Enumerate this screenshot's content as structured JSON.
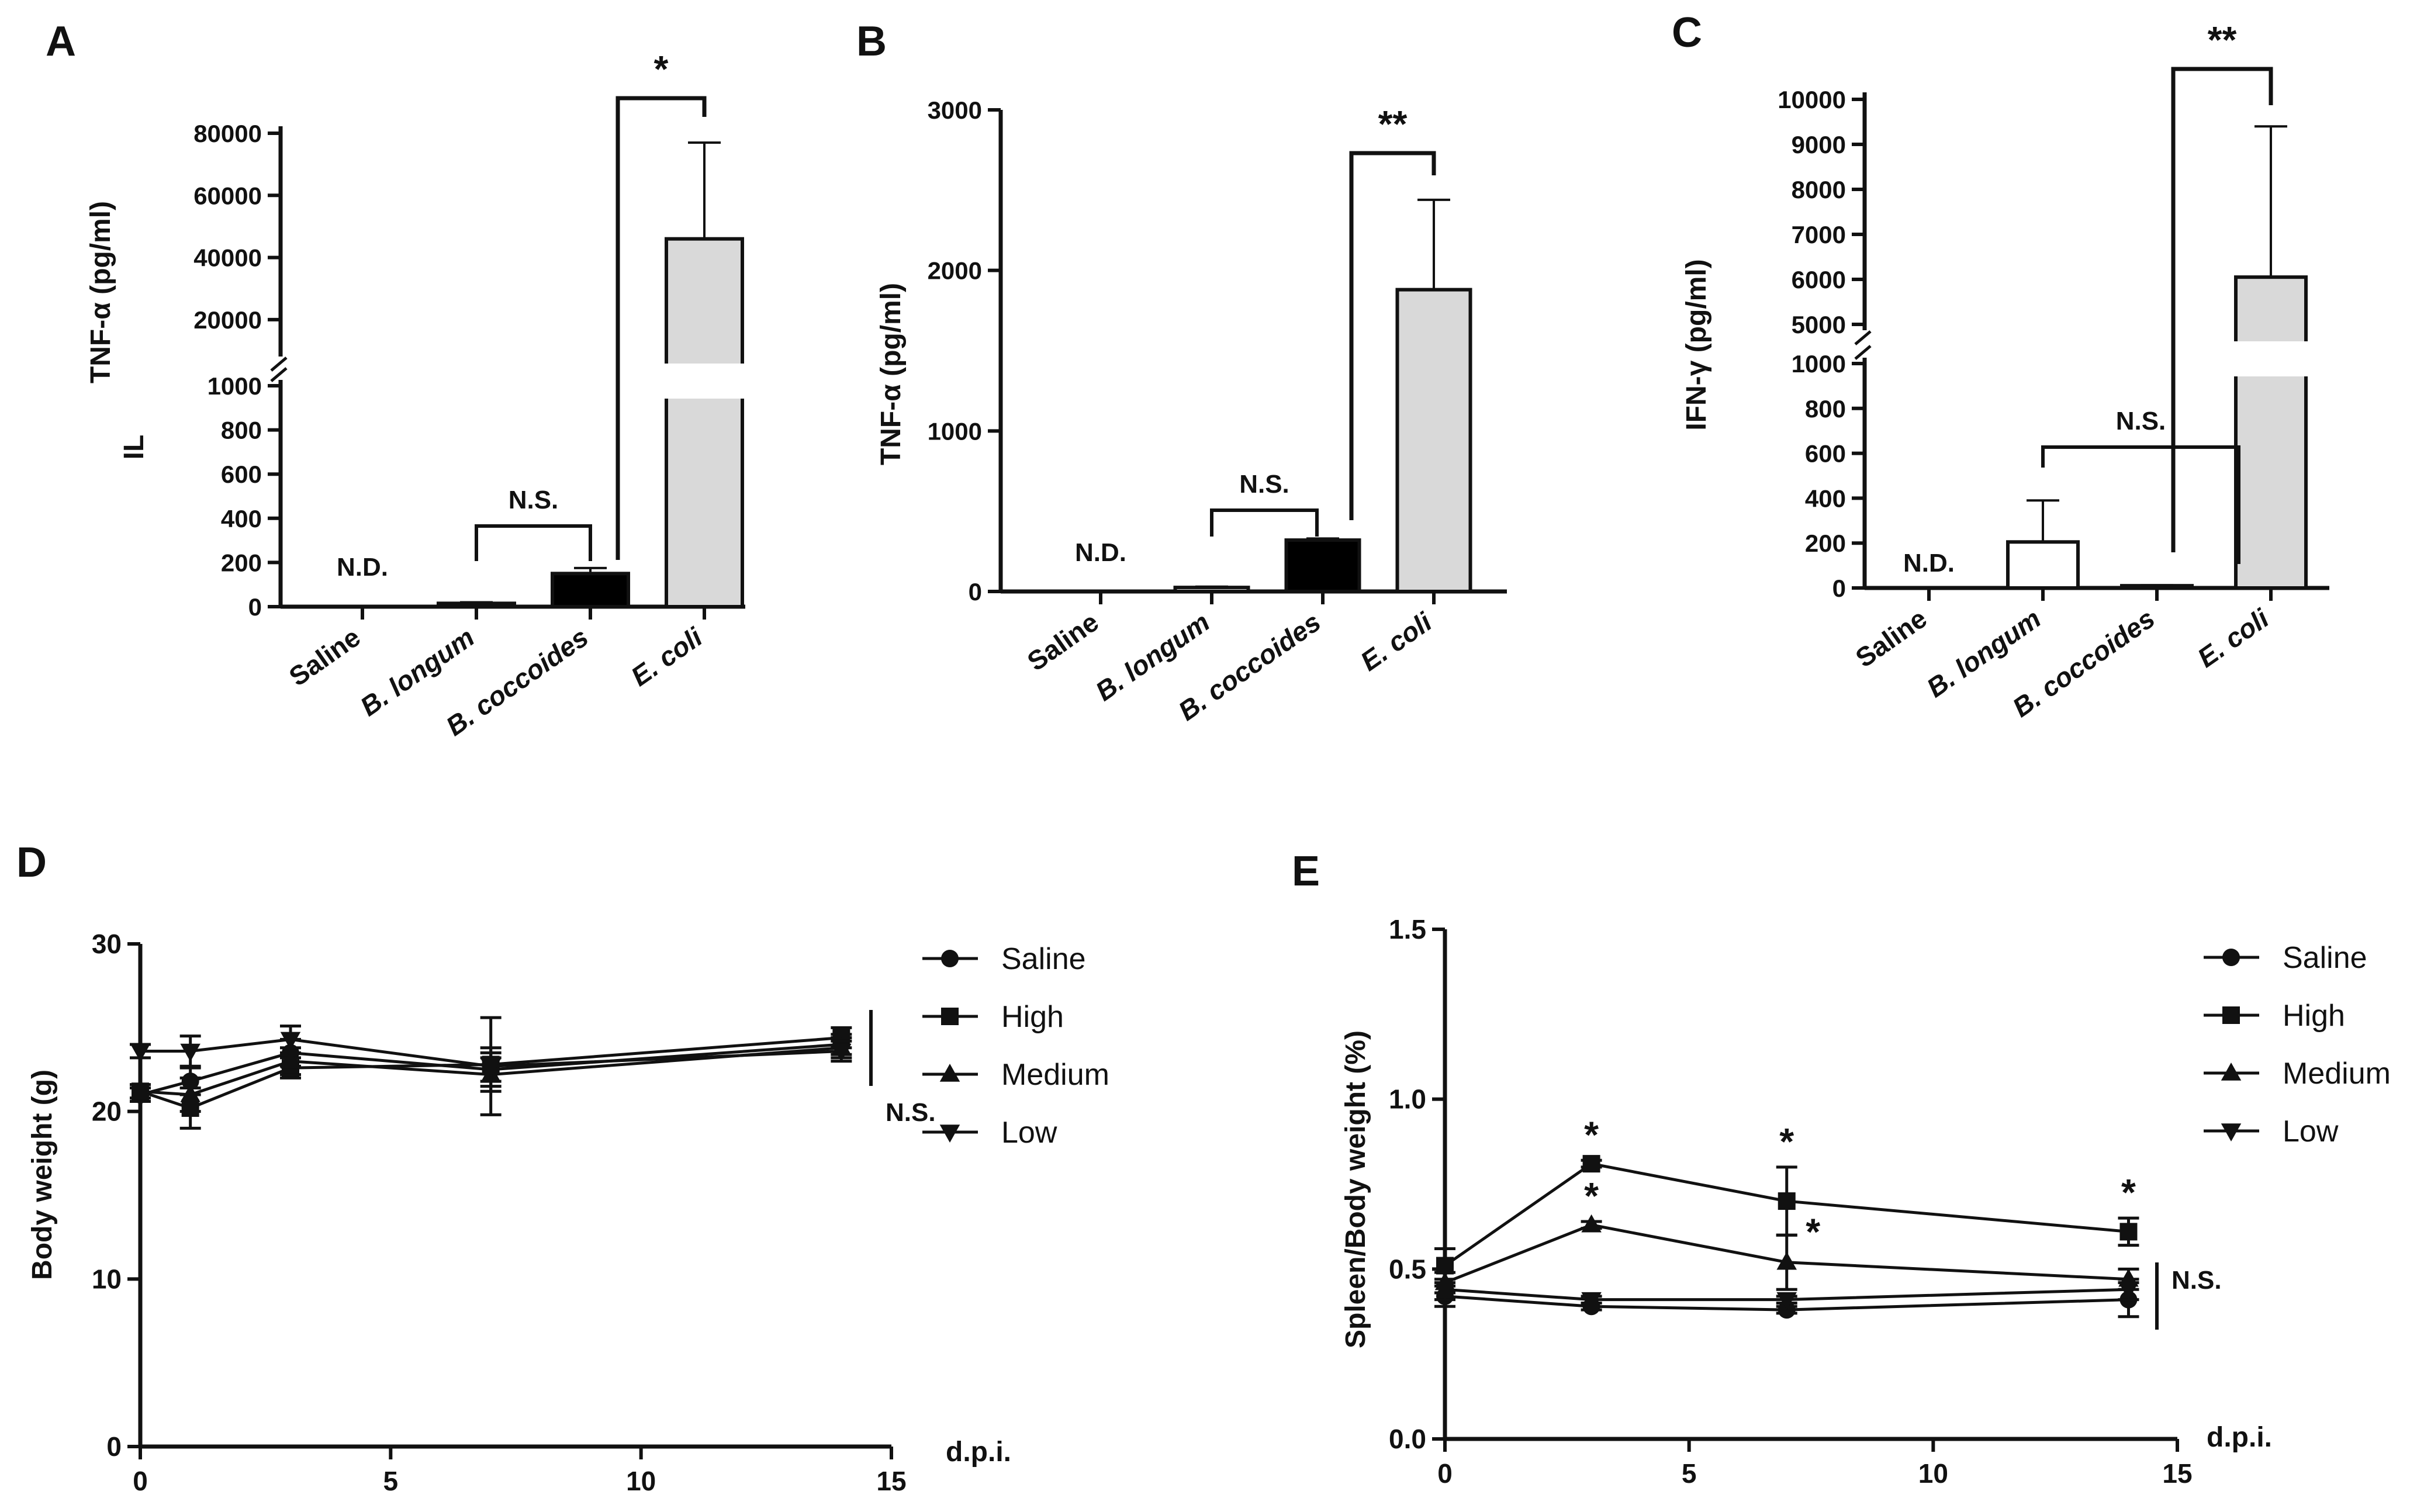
{
  "chart_data": [
    {
      "panel": "A",
      "type": "bar",
      "ylabel_upper": "TNF-α (pg/ml)",
      "ylabel_lower": "IL",
      "categories": [
        "Saline",
        "B. longum",
        "B. coccoides",
        "E. coli"
      ],
      "values": [
        0,
        15,
        150,
        46000
      ],
      "errors": [
        0,
        5,
        25,
        31000
      ],
      "colors": [
        "#ffffff",
        "#ffffff",
        "#000000",
        "#d9d9d9"
      ],
      "ylim_lower": [
        0,
        1000
      ],
      "ylim_upper": [
        10000,
        80000
      ],
      "yticks_lower": [
        "0",
        "200",
        "400",
        "600",
        "800",
        "1000"
      ],
      "yticks_upper": [
        "20000",
        "40000",
        "60000",
        "80000"
      ],
      "annotations": {
        "nd": "N.D.",
        "ns": "N.S.",
        "sig": "*"
      }
    },
    {
      "panel": "B",
      "type": "bar",
      "ylabel": "TNF-α (pg/ml)",
      "categories": [
        "Saline",
        "B. longum",
        "B. coccoides",
        "E. coli"
      ],
      "values": [
        0,
        25,
        320,
        1880
      ],
      "errors": [
        0,
        5,
        10,
        560
      ],
      "colors": [
        "#ffffff",
        "#ffffff",
        "#000000",
        "#d9d9d9"
      ],
      "ylim": [
        0,
        3000
      ],
      "yticks": [
        "0",
        "1000",
        "2000",
        "3000"
      ],
      "annotations": {
        "nd": "N.D.",
        "ns": "N.S.",
        "sig": "**"
      }
    },
    {
      "panel": "C",
      "type": "bar",
      "ylabel": "IFN-γ (pg/ml)",
      "categories": [
        "Saline",
        "B. longum",
        "B. coccoides",
        "E. coli"
      ],
      "values": [
        0,
        205,
        10,
        6050
      ],
      "errors": [
        0,
        185,
        2,
        3350
      ],
      "colors": [
        "#ffffff",
        "#ffffff",
        "#000000",
        "#d9d9d9"
      ],
      "ylim_lower": [
        0,
        1000
      ],
      "ylim_upper": [
        5000,
        10000
      ],
      "yticks_lower": [
        "0",
        "200",
        "400",
        "600",
        "800",
        "1000"
      ],
      "yticks_upper": [
        "5000",
        "6000",
        "7000",
        "8000",
        "9000",
        "10000"
      ],
      "annotations": {
        "nd": "N.D.",
        "ns": "N.S.",
        "sig": "**"
      }
    },
    {
      "panel": "D",
      "type": "line",
      "ylabel": "Body weight (g)",
      "xlabel": "d.p.i.",
      "xlim": [
        0,
        15
      ],
      "ylim": [
        0,
        30
      ],
      "xticks": [
        "0",
        "5",
        "10",
        "15"
      ],
      "yticks": [
        "0",
        "10",
        "20",
        "30"
      ],
      "x": [
        0,
        1,
        3,
        7,
        14
      ],
      "series": [
        {
          "name": "Saline",
          "marker": "circle",
          "values": [
            21.0,
            21.8,
            23.5,
            22.5,
            24.0
          ],
          "errors": [
            0.4,
            0.8,
            0.8,
            1.0,
            0.6
          ]
        },
        {
          "name": "High",
          "marker": "square",
          "values": [
            21.2,
            20.2,
            22.6,
            22.8,
            24.4
          ],
          "errors": [
            0.4,
            1.2,
            0.6,
            1.0,
            0.6
          ]
        },
        {
          "name": "Medium",
          "marker": "triangle-up",
          "values": [
            21.2,
            21.0,
            23.0,
            22.2,
            23.8
          ],
          "errors": [
            0.4,
            1.0,
            0.8,
            1.0,
            0.6
          ]
        },
        {
          "name": "Low",
          "marker": "triangle-down",
          "values": [
            23.6,
            23.6,
            24.3,
            22.7,
            23.6
          ],
          "errors": [
            0.4,
            0.9,
            0.8,
            2.9,
            0.6
          ]
        }
      ],
      "annotations": {
        "ns": "N.S."
      }
    },
    {
      "panel": "E",
      "type": "line",
      "ylabel": "Spleen/Body weight (%)",
      "xlabel": "d.p.i.",
      "xlim": [
        0,
        15
      ],
      "ylim": [
        0,
        1.5
      ],
      "xticks": [
        "0",
        "5",
        "10",
        "15"
      ],
      "yticks": [
        "0.0",
        "0.5",
        "1.0",
        "1.5"
      ],
      "x": [
        0,
        3,
        7,
        14
      ],
      "series": [
        {
          "name": "Saline",
          "marker": "circle",
          "values": [
            0.42,
            0.39,
            0.38,
            0.41
          ],
          "errors": [
            0.03,
            0.01,
            0.01,
            0.05
          ]
        },
        {
          "name": "High",
          "marker": "square",
          "values": [
            0.51,
            0.81,
            0.7,
            0.61
          ],
          "errors": [
            0.05,
            0.01,
            0.1,
            0.04
          ]
        },
        {
          "name": "Medium",
          "marker": "triangle-up",
          "values": [
            0.46,
            0.63,
            0.52,
            0.47
          ],
          "errors": [
            0.03,
            0.01,
            0.08,
            0.03
          ]
        },
        {
          "name": "Low",
          "marker": "triangle-down",
          "values": [
            0.44,
            0.41,
            0.41,
            0.44
          ],
          "errors": [
            0.03,
            0.01,
            0.01,
            0.03
          ]
        }
      ],
      "significance": [
        {
          "series": "High",
          "x": 3,
          "label": "*"
        },
        {
          "series": "High",
          "x": 7,
          "label": "*"
        },
        {
          "series": "High",
          "x": 14,
          "label": "*"
        },
        {
          "series": "Medium",
          "x": 3,
          "label": "*"
        },
        {
          "series": "Medium",
          "x": 7,
          "label": "*"
        }
      ],
      "annotations": {
        "ns": "N.S."
      }
    }
  ]
}
